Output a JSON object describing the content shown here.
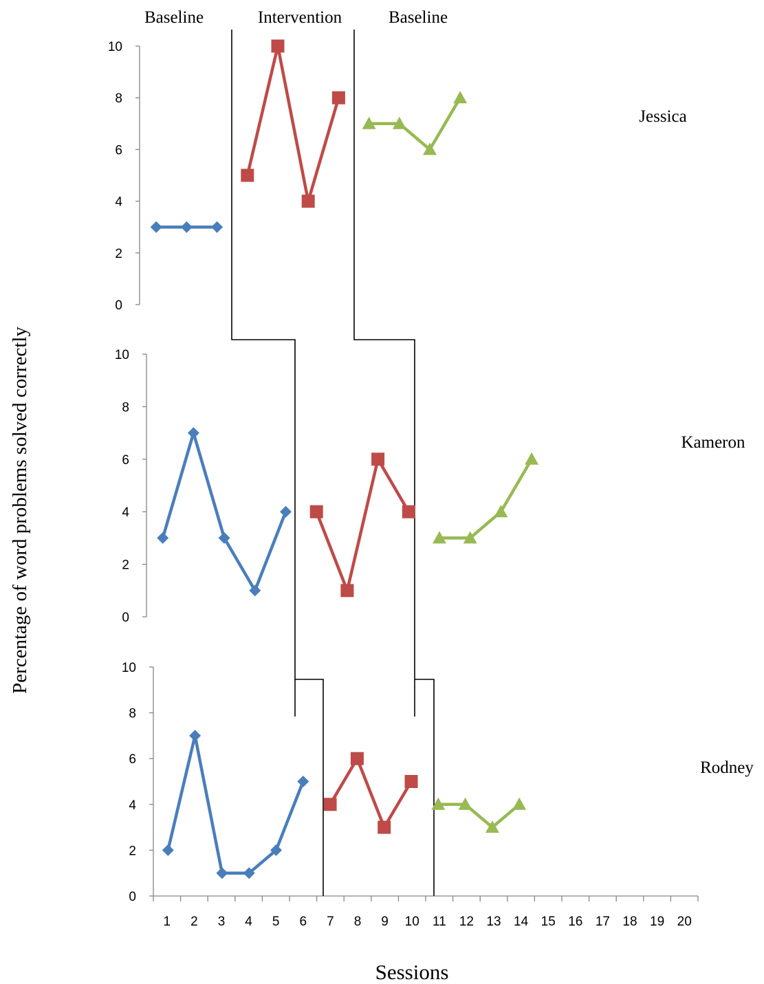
{
  "chart": {
    "ylabel": "Percentage of word problems solved correctly",
    "xlabel": "Sessions",
    "phase_labels": [
      "Baseline",
      "Intervention",
      "Baseline"
    ],
    "x_ticks": [
      "1",
      "2",
      "3",
      "4",
      "5",
      "6",
      "7",
      "8",
      "9",
      "10",
      "11",
      "12",
      "13",
      "14",
      "15",
      "16",
      "17",
      "18",
      "19",
      "20"
    ],
    "y_ticks": [
      "0",
      "2",
      "4",
      "6",
      "8",
      "10"
    ]
  },
  "colors": {
    "baseline": "#4a7ebb",
    "intervention": "#be4b48",
    "return_baseline": "#98b954",
    "phase_line": "#000000",
    "axis": "#868686"
  },
  "chart_data": [
    {
      "type": "line",
      "name": "Jessica",
      "ylim": [
        0,
        10
      ],
      "series": [
        {
          "phase": "baseline",
          "x": [
            1,
            2,
            3
          ],
          "values": [
            3,
            3,
            3
          ]
        },
        {
          "phase": "intervention",
          "x": [
            4,
            5,
            6,
            7
          ],
          "values": [
            5,
            10,
            4,
            8
          ]
        },
        {
          "phase": "return_baseline",
          "x": [
            8,
            9,
            10,
            11
          ],
          "values": [
            7,
            7,
            6,
            8
          ]
        }
      ]
    },
    {
      "type": "line",
      "name": "Kameron",
      "ylim": [
        0,
        10
      ],
      "series": [
        {
          "phase": "baseline",
          "x": [
            1,
            2,
            3,
            4,
            5
          ],
          "values": [
            3,
            7,
            3,
            1,
            4
          ]
        },
        {
          "phase": "intervention",
          "x": [
            6,
            7,
            8,
            9
          ],
          "values": [
            4,
            1,
            6,
            4
          ]
        },
        {
          "phase": "return_baseline",
          "x": [
            10,
            11,
            12,
            13
          ],
          "values": [
            3,
            3,
            4,
            6
          ]
        }
      ]
    },
    {
      "type": "line",
      "name": "Rodney",
      "ylim": [
        0,
        10
      ],
      "series": [
        {
          "phase": "baseline",
          "x": [
            1,
            2,
            3,
            4,
            5,
            6
          ],
          "values": [
            2,
            7,
            1,
            1,
            2,
            5
          ]
        },
        {
          "phase": "intervention",
          "x": [
            7,
            8,
            9,
            10
          ],
          "values": [
            4,
            6,
            3,
            5
          ]
        },
        {
          "phase": "return_baseline",
          "x": [
            11,
            12,
            13,
            14
          ],
          "values": [
            4,
            4,
            3,
            4
          ]
        }
      ]
    }
  ]
}
